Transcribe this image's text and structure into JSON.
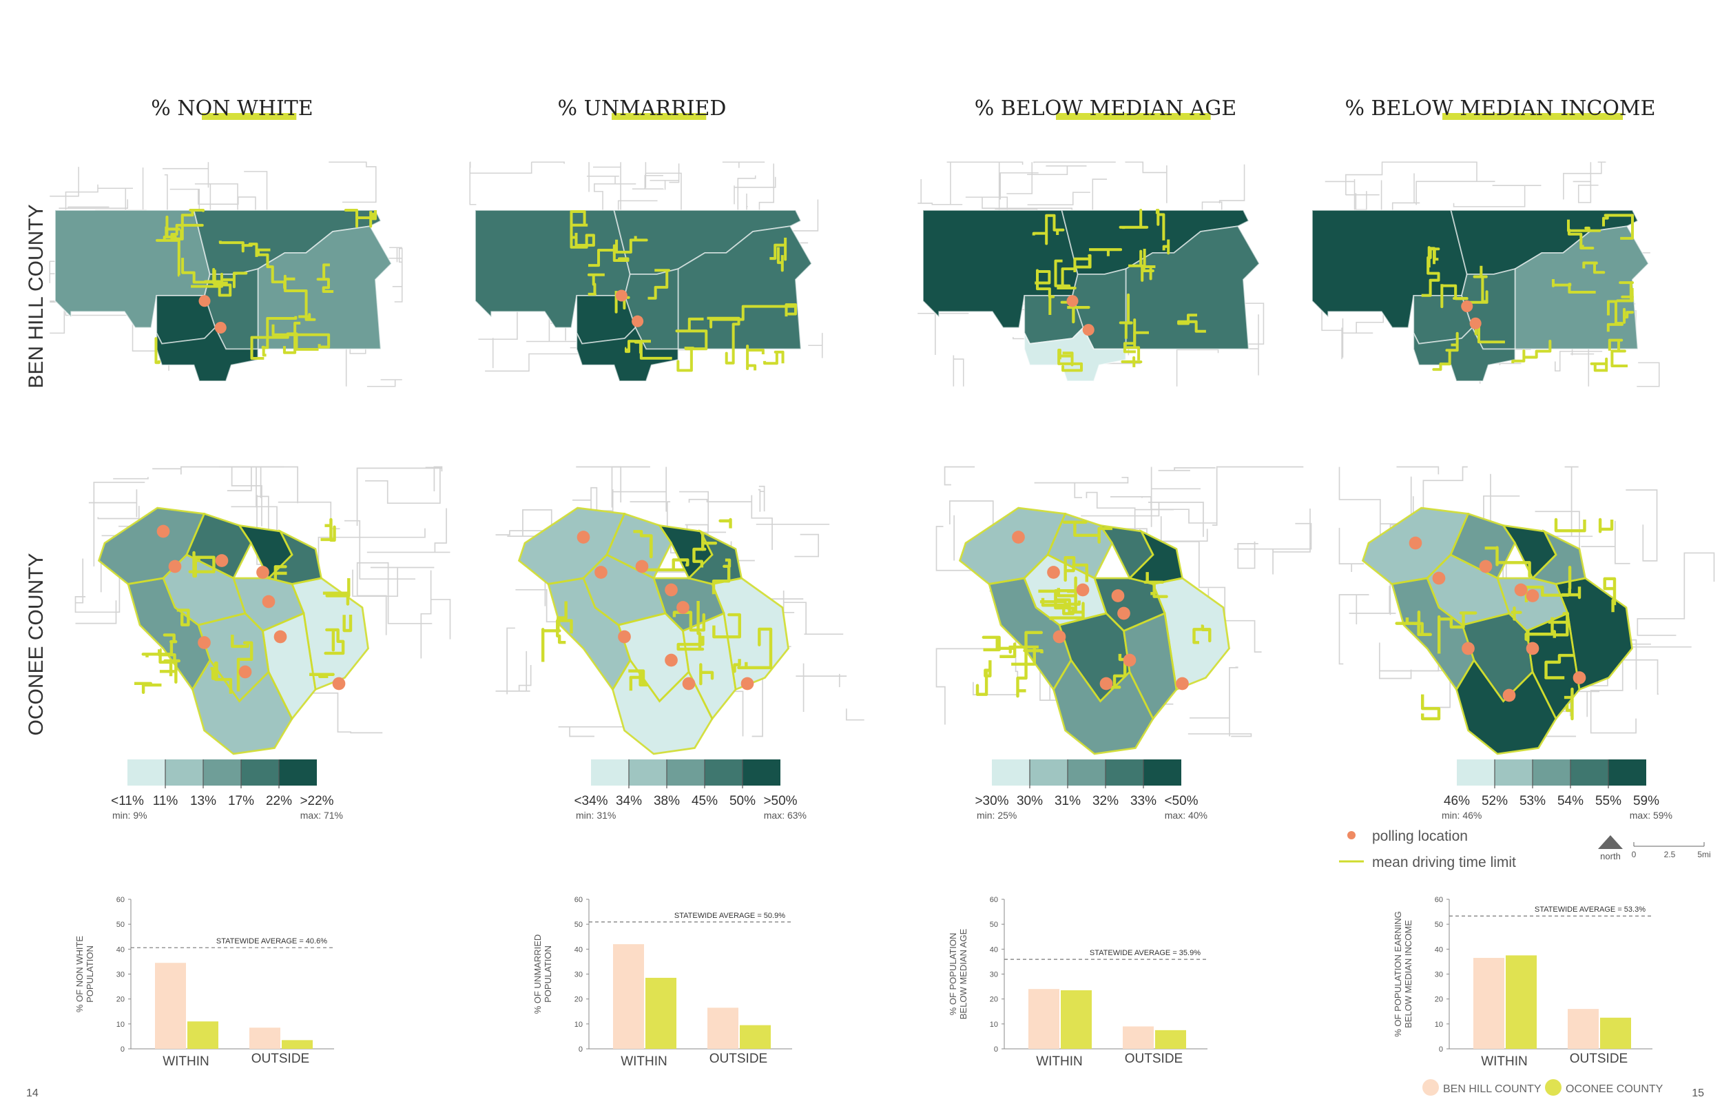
{
  "columns": [
    {
      "title": "% NON WHITE",
      "legend": {
        "labels": [
          "<11%",
          "11%",
          "13%",
          "17%",
          "22%",
          ">22%"
        ],
        "min": "min: 9%",
        "max": "max: 71%"
      },
      "chart": {
        "ylabel": [
          "% OF NON WHITE",
          "POPULATION"
        ],
        "avg_label": "STATEWIDE AVERAGE = 40.6%",
        "avg": 40.6,
        "categories": [
          "WITHIN",
          "OUTSIDE"
        ],
        "ben_hill": [
          34.5,
          8.5
        ],
        "oconee": [
          11,
          3.5
        ]
      }
    },
    {
      "title": "% UNMARRIED",
      "legend": {
        "labels": [
          "<34%",
          "34%",
          "38%",
          "45%",
          "50%",
          ">50%"
        ],
        "min": "min: 31%",
        "max": "max: 63%"
      },
      "chart": {
        "ylabel": [
          "% OF UNMARRIED",
          "POPULATION"
        ],
        "avg_label": "STATEWIDE AVERAGE = 50.9%",
        "avg": 50.9,
        "categories": [
          "WITHIN",
          "OUTSIDE"
        ],
        "ben_hill": [
          42,
          16.5
        ],
        "oconee": [
          28.5,
          9.5
        ]
      }
    },
    {
      "title": "% BELOW MEDIAN AGE",
      "legend": {
        "labels": [
          ">30%",
          "30%",
          "31%",
          "32%",
          "33%",
          "<50%"
        ],
        "min": "min: 25%",
        "max": "max: 40%"
      },
      "chart": {
        "ylabel": [
          "% OF POPULATION",
          "BELOW MEDIAN AGE"
        ],
        "avg_label": "STATEWIDE AVERAGE = 35.9%",
        "avg": 35.9,
        "categories": [
          "WITHIN",
          "OUTSIDE"
        ],
        "ben_hill": [
          24,
          9
        ],
        "oconee": [
          23.5,
          7.5
        ]
      }
    },
    {
      "title": "% BELOW MEDIAN INCOME",
      "legend": {
        "labels": [
          "46%",
          "52%",
          "53%",
          "54%",
          "55%",
          "59%"
        ],
        "min": "min: 46%",
        "max": "max: 59%"
      },
      "chart": {
        "ylabel": [
          "% OF POPULATION EARNING",
          "BELOW MEDIAN INCOME"
        ],
        "avg_label": "STATEWIDE AVERAGE = 53.3%",
        "avg": 53.3,
        "categories": [
          "WITHIN",
          "OUTSIDE"
        ],
        "ben_hill": [
          36.5,
          16
        ],
        "oconee": [
          37.5,
          12.5
        ]
      }
    }
  ],
  "rows": [
    "BEN HILL COUNTY",
    "OCONEE COUNTY"
  ],
  "map_legend": {
    "polling": "polling location",
    "drive": "mean driving time limit"
  },
  "scale": {
    "north": "north",
    "ticks": [
      "0",
      "2.5",
      "5mi"
    ]
  },
  "chart_legend": [
    "BEN HILL COUNTY",
    "OCONEE COUNTY"
  ],
  "page_numbers": [
    "14",
    "15"
  ],
  "chart_data": [
    {
      "type": "bar",
      "categories": [
        "WITHIN",
        "OUTSIDE"
      ],
      "ylim": [
        0,
        60
      ],
      "yticks": [
        0,
        10,
        20,
        30,
        40,
        50,
        60
      ],
      "ylabel": "% OF NON WHITE POPULATION",
      "series": [
        {
          "name": "BEN HILL COUNTY",
          "values": [
            34.5,
            8.5
          ]
        },
        {
          "name": "OCONEE COUNTY",
          "values": [
            11,
            3.5
          ]
        }
      ],
      "reference_line": 40.6
    },
    {
      "type": "bar",
      "categories": [
        "WITHIN",
        "OUTSIDE"
      ],
      "ylim": [
        0,
        60
      ],
      "yticks": [
        0,
        10,
        20,
        30,
        40,
        50,
        60
      ],
      "ylabel": "% OF UNMARRIED POPULATION",
      "series": [
        {
          "name": "BEN HILL COUNTY",
          "values": [
            42,
            16.5
          ]
        },
        {
          "name": "OCONEE COUNTY",
          "values": [
            28.5,
            9.5
          ]
        }
      ],
      "reference_line": 50.9
    },
    {
      "type": "bar",
      "categories": [
        "WITHIN",
        "OUTSIDE"
      ],
      "ylim": [
        0,
        60
      ],
      "yticks": [
        0,
        10,
        20,
        30,
        40,
        50,
        60
      ],
      "ylabel": "% OF POPULATION BELOW MEDIAN AGE",
      "series": [
        {
          "name": "BEN HILL COUNTY",
          "values": [
            24,
            9
          ]
        },
        {
          "name": "OCONEE COUNTY",
          "values": [
            23.5,
            7.5
          ]
        }
      ],
      "reference_line": 35.9
    },
    {
      "type": "bar",
      "categories": [
        "WITHIN",
        "OUTSIDE"
      ],
      "ylim": [
        0,
        60
      ],
      "yticks": [
        0,
        10,
        20,
        30,
        40,
        50,
        60
      ],
      "ylabel": "% OF POPULATION EARNING BELOW MEDIAN INCOME",
      "series": [
        {
          "name": "BEN HILL COUNTY",
          "values": [
            36.5,
            16
          ]
        },
        {
          "name": "OCONEE COUNTY",
          "values": [
            37.5,
            12.5
          ]
        }
      ],
      "reference_line": 53.3
    }
  ],
  "palette": [
    "#d5ecea",
    "#9fc5c1",
    "#6f9e98",
    "#3f776f",
    "#16524a"
  ],
  "colors": {
    "ben_hill_bar": "#fcdcc6",
    "oconee_bar": "#e0e251",
    "highlight": "#d6e03a",
    "poll": "#ef8a62",
    "drive": "#cfdc2e"
  }
}
